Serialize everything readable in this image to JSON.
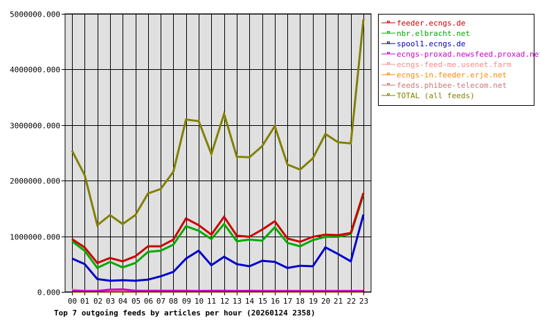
{
  "chart_data": {
    "type": "line",
    "title": "Top 7 outgoing feeds by articles per hour (20260124 2358)",
    "xlabel": "",
    "ylabel": "",
    "ylim": [
      0,
      5000000
    ],
    "yticks": [
      "0.000",
      "1000000.000",
      "2000000.000",
      "3000000.000",
      "4000000.000",
      "5000000.000"
    ],
    "grid": true,
    "legend_position": "right",
    "categories": [
      "00",
      "01",
      "02",
      "03",
      "04",
      "05",
      "06",
      "07",
      "08",
      "09",
      "10",
      "11",
      "12",
      "13",
      "14",
      "15",
      "16",
      "17",
      "18",
      "19",
      "20",
      "21",
      "22",
      "23"
    ],
    "series": [
      {
        "name": "feeder.ecngs.de",
        "color": "#cc0000",
        "values": [
          950000,
          800000,
          520000,
          610000,
          550000,
          640000,
          820000,
          820000,
          940000,
          1320000,
          1200000,
          1030000,
          1350000,
          1010000,
          990000,
          1120000,
          1270000,
          960000,
          900000,
          990000,
          1030000,
          1020000,
          1060000,
          1780000
        ]
      },
      {
        "name": "nbr.elbracht.net",
        "color": "#00aa00",
        "values": [
          910000,
          740000,
          430000,
          540000,
          440000,
          520000,
          720000,
          740000,
          850000,
          1180000,
          1100000,
          950000,
          1220000,
          910000,
          940000,
          920000,
          1160000,
          880000,
          820000,
          930000,
          990000,
          990000,
          1040000,
          1750000
        ]
      },
      {
        "name": "spool1.ecngs.de",
        "color": "#0000cc",
        "values": [
          600000,
          500000,
          230000,
          200000,
          210000,
          200000,
          220000,
          280000,
          360000,
          600000,
          740000,
          480000,
          630000,
          500000,
          460000,
          560000,
          540000,
          430000,
          470000,
          460000,
          800000,
          680000,
          550000,
          1390000
        ]
      },
      {
        "name": "ecngs-proxad.newsfeed.proxad.net",
        "color": "#cc00cc",
        "values": [
          20000,
          15000,
          15000,
          40000,
          45000,
          20000,
          20000,
          20000,
          20000,
          20000,
          15000,
          20000,
          20000,
          15000,
          20000,
          15000,
          15000,
          15000,
          15000,
          15000,
          15000,
          15000,
          15000,
          15000
        ]
      },
      {
        "name": "ecngs-feed-me.usenet.farm",
        "color": "#ff8888",
        "values": [
          40000,
          15000,
          15000,
          15000,
          15000,
          15000,
          15000,
          15000,
          15000,
          15000,
          15000,
          15000,
          15000,
          15000,
          15000,
          15000,
          15000,
          15000,
          15000,
          15000,
          15000,
          15000,
          15000,
          15000
        ]
      },
      {
        "name": "ecngs-in.feeder.erje.net",
        "color": "#ff8800",
        "values": [
          5000,
          5000,
          5000,
          5000,
          5000,
          5000,
          5000,
          5000,
          5000,
          5000,
          5000,
          5000,
          5000,
          5000,
          5000,
          5000,
          5000,
          5000,
          5000,
          5000,
          5000,
          5000,
          5000,
          5000
        ]
      },
      {
        "name": "feeds.phibee-telecom.net",
        "color": "#cc7777",
        "values": [
          10000,
          10000,
          10000,
          10000,
          10000,
          10000,
          10000,
          10000,
          10000,
          10000,
          10000,
          10000,
          10000,
          10000,
          10000,
          10000,
          10000,
          10000,
          10000,
          10000,
          10000,
          10000,
          10000,
          10000
        ]
      },
      {
        "name": "TOTAL (all feeds)",
        "color": "#808000",
        "values": [
          2540000,
          2100000,
          1200000,
          1380000,
          1220000,
          1380000,
          1770000,
          1850000,
          2160000,
          3100000,
          3070000,
          2480000,
          3200000,
          2430000,
          2420000,
          2620000,
          2980000,
          2290000,
          2200000,
          2400000,
          2840000,
          2690000,
          2670000,
          4900000
        ]
      }
    ]
  },
  "colors": {
    "plot_background": "#e0e0e0",
    "grid": "#000000",
    "page_background": "#ffffff"
  }
}
